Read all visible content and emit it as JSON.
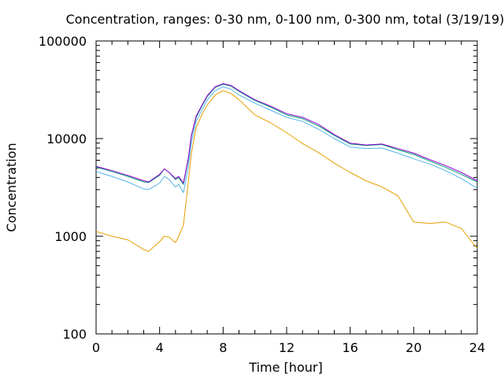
{
  "chart_data": {
    "type": "line",
    "title": "Concentration, ranges: 0-30 nm, 0-100 nm, 0-300 nm, total (3/19/19)",
    "xlabel": "Time [hour]",
    "ylabel": "Concentration",
    "xlim": [
      0,
      24
    ],
    "ylim": [
      100,
      100000
    ],
    "yscale": "log",
    "grid": false,
    "legend": "none",
    "x_ticks": [
      0,
      4,
      8,
      12,
      16,
      20,
      24
    ],
    "x_tick_labels": [
      "0",
      "4",
      "8",
      "12",
      "16",
      "20",
      "24"
    ],
    "y_ticks": [
      100,
      1000,
      10000,
      100000
    ],
    "y_tick_labels": [
      "100",
      "1000",
      "10000",
      "100000"
    ],
    "x": [
      0,
      1,
      2,
      3,
      3.3,
      4,
      4.3,
      4.6,
      5,
      5.2,
      5.5,
      5.8,
      6,
      6.3,
      6.7,
      7,
      7.5,
      8,
      8.5,
      9,
      10,
      11,
      12,
      13,
      14,
      15,
      16,
      17,
      18,
      19,
      20,
      21,
      22,
      23,
      24
    ],
    "series": [
      {
        "color": "#e69f00",
        "values": [
          1120,
          1000,
          920,
          730,
          700,
          880,
          1000,
          980,
          860,
          1000,
          1300,
          3500,
          7000,
          13000,
          18000,
          22000,
          28000,
          31000,
          29000,
          25000,
          17500,
          14500,
          11500,
          8900,
          7200,
          5600,
          4500,
          3700,
          3200,
          2600,
          1400,
          1350,
          1400,
          1200,
          750
        ]
      },
      {
        "color": "#56b4e9",
        "values": [
          4600,
          4100,
          3600,
          3050,
          3000,
          3500,
          4100,
          3800,
          3200,
          3400,
          2800,
          5000,
          9000,
          15000,
          20000,
          25000,
          31000,
          34000,
          32000,
          28000,
          23000,
          19500,
          16500,
          15000,
          12500,
          10000,
          8200,
          7900,
          8000,
          7100,
          6200,
          5500,
          4700,
          3900,
          3100
        ]
      },
      {
        "color": "#009e73",
        "values": [
          5100,
          4600,
          4100,
          3600,
          3550,
          4200,
          4900,
          4500,
          3800,
          4000,
          3400,
          6000,
          10500,
          16500,
          22000,
          27000,
          33500,
          36000,
          34500,
          30500,
          24500,
          21000,
          17500,
          16000,
          13500,
          10800,
          8800,
          8500,
          8700,
          7700,
          6900,
          5900,
          5100,
          4300,
          3600
        ]
      },
      {
        "color": "#9400d3",
        "values": [
          5200,
          4700,
          4200,
          3700,
          3600,
          4300,
          4900,
          4500,
          3900,
          4100,
          3500,
          6200,
          10800,
          17000,
          22500,
          27500,
          34000,
          36500,
          35000,
          31000,
          25000,
          21500,
          18000,
          16500,
          14000,
          11000,
          9000,
          8600,
          8800,
          7900,
          7100,
          6100,
          5300,
          4500,
          3700
        ]
      }
    ]
  }
}
